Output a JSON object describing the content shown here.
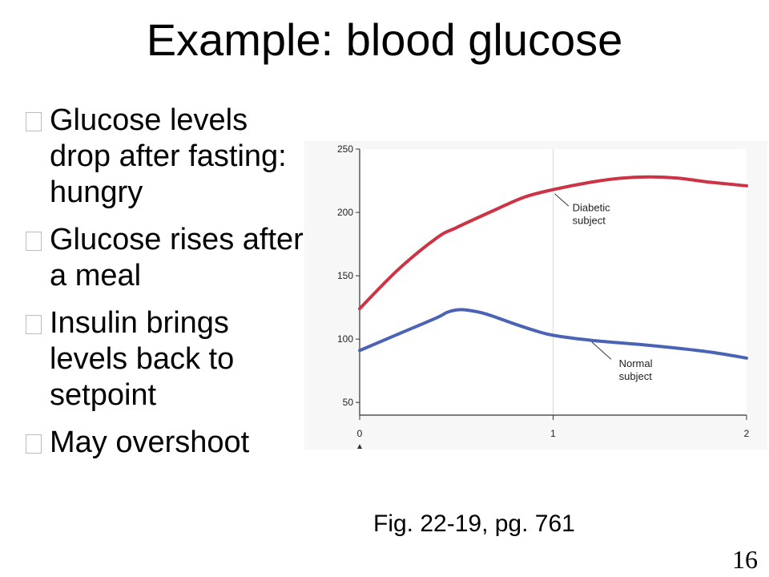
{
  "slide": {
    "title": "Example: blood glucose",
    "bullets": [
      "Glucose levels drop after fasting: hungry",
      "Glucose rises after a meal",
      "Insulin brings levels back to setpoint",
      "May overshoot"
    ],
    "caption": "Fig. 22-19, pg. 761",
    "page_number": "16"
  },
  "chart_data": {
    "type": "line",
    "title": "",
    "xlabel": "",
    "ylabel": "",
    "xlim": [
      0,
      2
    ],
    "ylim": [
      40,
      250
    ],
    "x_ticks": [
      0,
      1,
      2
    ],
    "y_ticks": [
      50,
      100,
      150,
      200,
      250
    ],
    "grid": "vertical line at x = 1",
    "series": [
      {
        "name": "Diabetic subject",
        "color": "#cc3344",
        "x": [
          0,
          0.2,
          0.4,
          0.5,
          0.7,
          0.85,
          1.0,
          1.2,
          1.35,
          1.5,
          1.65,
          1.8,
          2.0
        ],
        "values": [
          124,
          155,
          180,
          188,
          202,
          212,
          218,
          224,
          227,
          228,
          227,
          224,
          221
        ]
      },
      {
        "name": "Normal subject",
        "color": "#4a63b5",
        "x": [
          0,
          0.2,
          0.4,
          0.45,
          0.5,
          0.55,
          0.65,
          0.8,
          0.9,
          1.0,
          1.2,
          1.5,
          1.8,
          2.0
        ],
        "values": [
          91,
          104,
          117,
          121,
          123,
          123,
          120,
          112,
          107,
          103,
          99,
          95,
          90,
          85
        ]
      }
    ]
  }
}
